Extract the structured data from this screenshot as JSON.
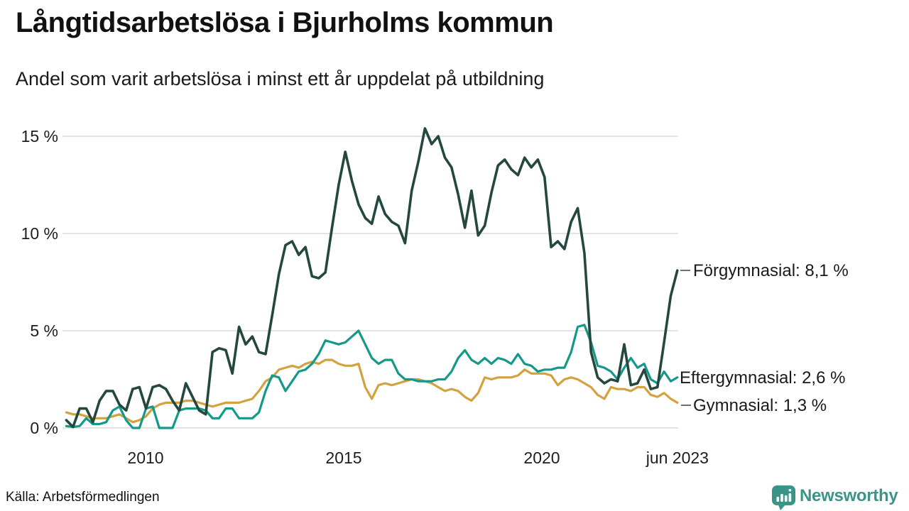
{
  "header": {
    "title": "Långtidsarbetslösa i Bjurholms kommun",
    "subtitle": "Andel som varit arbetslösa i minst ett år uppdelat på utbildning"
  },
  "footer": {
    "source": "Källa: Arbetsförmedlingen",
    "logo_text": "Newsworthy",
    "logo_color": "#3a9488"
  },
  "chart_data": {
    "type": "line",
    "title": "Långtidsarbetslösa i Bjurholms kommun",
    "subtitle": "Andel som varit arbetslösa i minst ett år uppdelat på utbildning",
    "unit": "%",
    "x_range": [
      2008.0,
      2023.42
    ],
    "x_note": "share unemployed ≥ 1 year, values evenly spaced ~bi-monthly from jan 2008 to jun 2023",
    "ylim": [
      0,
      15.5
    ],
    "grid": "horizontal",
    "background": "#ffffff",
    "gridline_color": "#e4e4e1",
    "yticks": [
      {
        "value": 15,
        "label": "15 %"
      },
      {
        "value": 10,
        "label": "10 %"
      },
      {
        "value": 5,
        "label": "5 %"
      },
      {
        "value": 0,
        "label": "0 %"
      }
    ],
    "xticks": [
      {
        "year": 2010,
        "label": "2010"
      },
      {
        "year": 2015,
        "label": "2015"
      },
      {
        "year": 2020,
        "label": "2020"
      },
      {
        "year": 2023.42,
        "label": "jun 2023"
      }
    ],
    "legend_position": "right-end-labels",
    "series": [
      {
        "id": "gymnasial",
        "name": "Gymnasial",
        "label": "Gymnasial: 1,3 %",
        "end_value": 1.3,
        "color": "#d3a23f",
        "values": [
          0.8,
          0.7,
          0.7,
          0.6,
          0.5,
          0.5,
          0.5,
          0.6,
          0.7,
          0.5,
          0.3,
          0.4,
          0.6,
          1.0,
          1.2,
          1.3,
          1.3,
          1.3,
          1.4,
          1.4,
          1.3,
          1.2,
          1.1,
          1.2,
          1.3,
          1.3,
          1.3,
          1.4,
          1.5,
          1.9,
          2.4,
          2.6,
          3.0,
          3.1,
          3.2,
          3.1,
          3.3,
          3.4,
          3.3,
          3.5,
          3.5,
          3.3,
          3.2,
          3.2,
          3.3,
          2.1,
          1.5,
          2.2,
          2.3,
          2.2,
          2.3,
          2.4,
          2.5,
          2.5,
          2.4,
          2.3,
          2.1,
          1.9,
          2.0,
          1.9,
          1.6,
          1.4,
          1.8,
          2.6,
          2.5,
          2.6,
          2.6,
          2.6,
          2.7,
          3.0,
          2.8,
          2.8,
          2.8,
          2.7,
          2.2,
          2.5,
          2.6,
          2.5,
          2.3,
          2.1,
          1.7,
          1.5,
          2.1,
          2.0,
          2.0,
          1.9,
          2.1,
          2.1,
          1.7,
          1.6,
          1.8,
          1.5,
          1.3
        ]
      },
      {
        "id": "eftergymnasial",
        "name": "Eftergymnasial",
        "label": "Eftergymnasial: 2,6 %",
        "end_value": 2.6,
        "color": "#13998a",
        "values": [
          0.1,
          0.05,
          0.1,
          0.5,
          0.2,
          0.2,
          0.3,
          0.9,
          1.1,
          0.4,
          0.0,
          0.0,
          1.0,
          1.1,
          0.0,
          0.0,
          0.0,
          0.9,
          1.0,
          1.0,
          1.0,
          0.9,
          0.5,
          0.5,
          1.0,
          1.0,
          0.5,
          0.5,
          0.5,
          0.8,
          1.9,
          2.7,
          2.6,
          1.9,
          2.4,
          2.9,
          3.0,
          3.3,
          3.8,
          4.5,
          4.4,
          4.3,
          4.4,
          4.7,
          5.0,
          4.3,
          3.6,
          3.3,
          3.5,
          3.5,
          2.8,
          2.5,
          2.5,
          2.4,
          2.4,
          2.4,
          2.5,
          2.5,
          2.9,
          3.6,
          4.0,
          3.5,
          3.3,
          3.6,
          3.3,
          3.6,
          3.5,
          3.3,
          3.8,
          3.3,
          3.2,
          2.9,
          3.0,
          3.0,
          3.1,
          3.1,
          3.9,
          5.2,
          5.3,
          4.4,
          3.2,
          3.1,
          2.9,
          2.5,
          3.1,
          3.6,
          3.1,
          3.3,
          2.5,
          2.3,
          2.9,
          2.4,
          2.6
        ]
      },
      {
        "id": "forgymnasial",
        "name": "Förgymnasial",
        "label": "Förgymnasial: 8,1 %",
        "end_value": 8.1,
        "color": "#24473e",
        "values": [
          0.4,
          0.05,
          1.0,
          1.0,
          0.3,
          1.4,
          1.9,
          1.9,
          1.2,
          0.9,
          2.0,
          2.1,
          1.0,
          2.1,
          2.2,
          2.0,
          1.4,
          0.9,
          2.3,
          1.6,
          0.9,
          0.7,
          3.9,
          4.1,
          4.0,
          2.8,
          5.2,
          4.3,
          4.7,
          3.9,
          3.8,
          5.8,
          7.9,
          9.4,
          9.6,
          8.9,
          9.3,
          7.8,
          7.7,
          8.0,
          10.3,
          12.5,
          14.2,
          12.7,
          11.5,
          10.8,
          10.5,
          11.9,
          11.0,
          10.6,
          10.4,
          9.5,
          12.2,
          13.7,
          15.4,
          14.6,
          15.0,
          13.9,
          13.4,
          12.0,
          10.3,
          12.2,
          9.9,
          10.4,
          12.1,
          13.5,
          13.8,
          13.3,
          13.0,
          13.9,
          13.4,
          13.8,
          12.9,
          9.3,
          9.6,
          9.2,
          10.6,
          11.3,
          9.0,
          3.9,
          2.6,
          2.3,
          2.5,
          2.4,
          4.3,
          2.2,
          2.3,
          3.0,
          2.0,
          2.1,
          4.4,
          6.8,
          8.1
        ]
      }
    ],
    "source": "Källa: Arbetsförmedlingen"
  }
}
